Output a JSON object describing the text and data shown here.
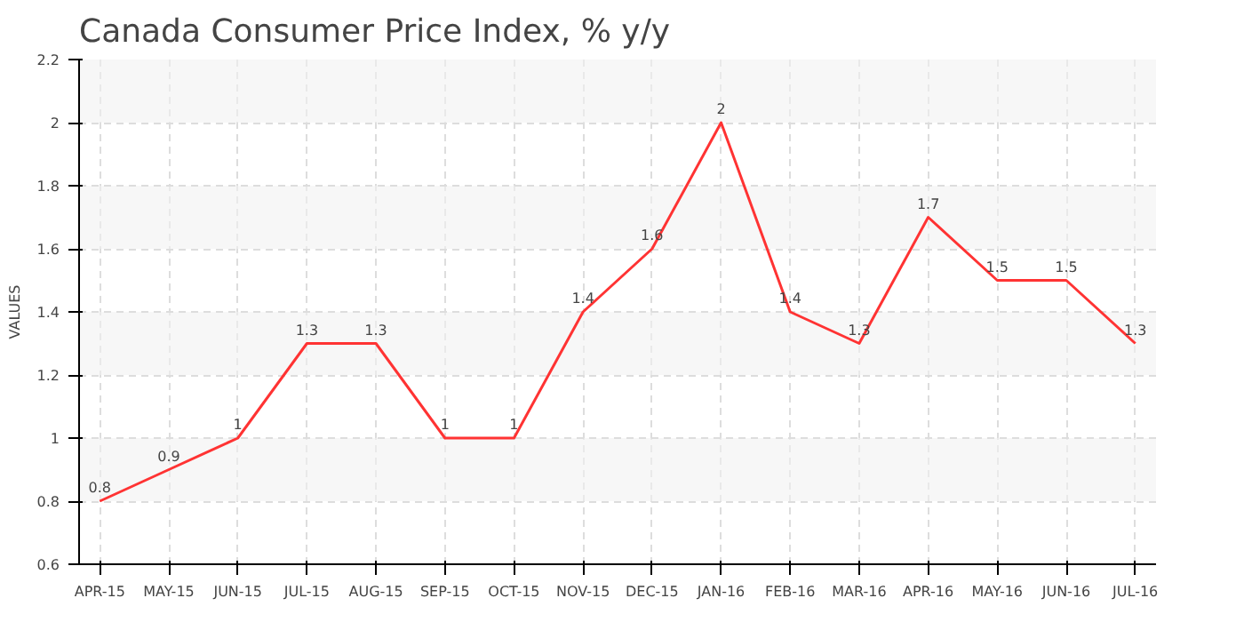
{
  "chart_data": {
    "type": "line",
    "title": "Canada Consumer Price Index, % y/y",
    "ylabel": "VALUES",
    "categories": [
      "APR-15",
      "MAY-15",
      "JUN-15",
      "JUL-15",
      "AUG-15",
      "SEP-15",
      "OCT-15",
      "NOV-15",
      "DEC-15",
      "JAN-16",
      "FEB-16",
      "MAR-16",
      "APR-16",
      "MAY-16",
      "JUN-16",
      "JUL-16"
    ],
    "series": [
      {
        "color": "#ff3333",
        "values": [
          0.8,
          0.9,
          1,
          1.3,
          1.3,
          1,
          1,
          1.4,
          1.6,
          2,
          1.4,
          1.3,
          1.7,
          1.5,
          1.5,
          1.3
        ]
      }
    ],
    "ylim": [
      0.6,
      2.2
    ],
    "yticks": [
      0.6,
      0.8,
      1,
      1.2,
      1.4,
      1.6,
      1.8,
      2,
      2.2
    ],
    "grid": true,
    "data_labels": true,
    "line_style": "solid",
    "marker": "none"
  }
}
